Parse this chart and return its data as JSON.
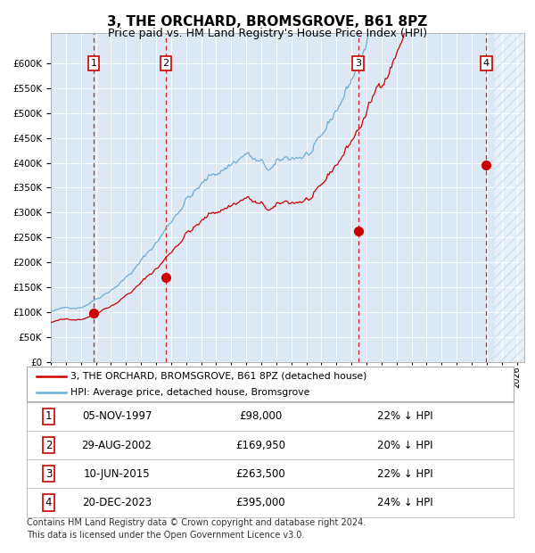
{
  "title": "3, THE ORCHARD, BROMSGROVE, B61 8PZ",
  "subtitle": "Price paid vs. HM Land Registry's House Price Index (HPI)",
  "title_fontsize": 11,
  "subtitle_fontsize": 9,
  "plot_bg_color": "#dce9f5",
  "ylim": [
    0,
    660000
  ],
  "yticks": [
    0,
    50000,
    100000,
    150000,
    200000,
    250000,
    300000,
    350000,
    400000,
    450000,
    500000,
    550000,
    600000
  ],
  "hpi_color": "#6baed6",
  "price_color": "#cc0000",
  "grid_color": "#ffffff",
  "dashed_color": "#cc0000",
  "transactions": [
    {
      "num": 1,
      "date": "05-NOV-1997",
      "year": 1997.85,
      "price": 98000,
      "pct": "22%",
      "dir": "↓"
    },
    {
      "num": 2,
      "date": "29-AUG-2002",
      "year": 2002.66,
      "price": 169950,
      "pct": "20%",
      "dir": "↓"
    },
    {
      "num": 3,
      "date": "10-JUN-2015",
      "year": 2015.44,
      "price": 263500,
      "pct": "22%",
      "dir": "↓"
    },
    {
      "num": 4,
      "date": "20-DEC-2023",
      "year": 2023.97,
      "price": 395000,
      "pct": "24%",
      "dir": "↓"
    }
  ],
  "legend_label_price": "3, THE ORCHARD, BROMSGROVE, B61 8PZ (detached house)",
  "legend_label_hpi": "HPI: Average price, detached house, Bromsgrove",
  "footer1": "Contains HM Land Registry data © Crown copyright and database right 2024.",
  "footer2": "This data is licensed under the Open Government Licence v3.0.",
  "xmin": 1995.0,
  "xmax": 2026.5,
  "table_rows": [
    [
      1,
      "05-NOV-1997",
      "£98,000",
      "22% ↓ HPI"
    ],
    [
      2,
      "29-AUG-2002",
      "£169,950",
      "20% ↓ HPI"
    ],
    [
      3,
      "10-JUN-2015",
      "£263,500",
      "22% ↓ HPI"
    ],
    [
      4,
      "20-DEC-2023",
      "£395,000",
      "24% ↓ HPI"
    ]
  ]
}
